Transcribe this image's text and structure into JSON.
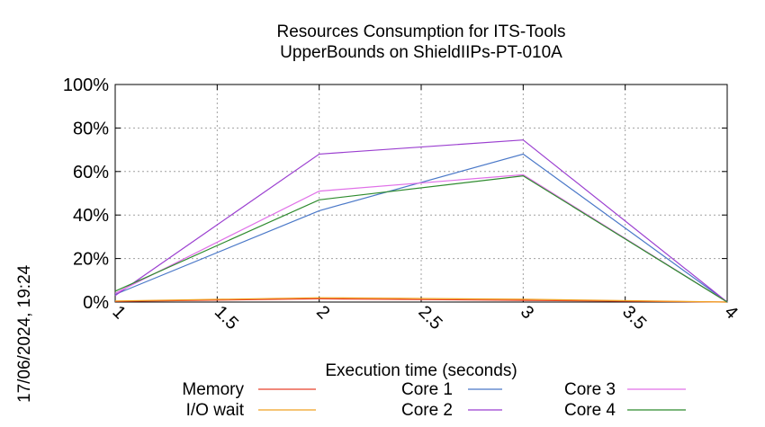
{
  "timestamp": "17/06/2024, 19:24",
  "chart_data": {
    "type": "line",
    "title": "Resources Consumption for ITS-Tools",
    "subtitle": "UpperBounds on ShieldIIPs-PT-010A",
    "xlabel": "Execution time (seconds)",
    "ylabel": "",
    "xlim": [
      1,
      4
    ],
    "ylim": [
      0,
      100
    ],
    "x_ticks": [
      "1",
      "1.5",
      "2",
      "2.5",
      "3",
      "3.5",
      "4"
    ],
    "y_ticks": [
      "0%",
      "20%",
      "40%",
      "60%",
      "80%",
      "100%"
    ],
    "grid": true,
    "legend_position": "bottom",
    "series": [
      {
        "name": "Memory",
        "color": "#e8402a",
        "x": [
          1,
          2,
          3,
          4
        ],
        "y": [
          0.3,
          1.5,
          0.8,
          0
        ]
      },
      {
        "name": "I/O wait",
        "color": "#f0a020",
        "x": [
          1,
          2,
          3,
          4
        ],
        "y": [
          0.5,
          2.0,
          1.3,
          0
        ]
      },
      {
        "name": "Core 1",
        "color": "#4a78c8",
        "x": [
          1,
          2,
          3,
          4
        ],
        "y": [
          3.5,
          42,
          68,
          0
        ]
      },
      {
        "name": "Core 2",
        "color": "#9b3fd0",
        "x": [
          1,
          2,
          3,
          4
        ],
        "y": [
          3,
          68,
          74.5,
          0
        ]
      },
      {
        "name": "Core 3",
        "color": "#e070e8",
        "x": [
          1,
          2,
          3,
          4
        ],
        "y": [
          4,
          51,
          58.5,
          0
        ]
      },
      {
        "name": "Core 4",
        "color": "#2e8b2e",
        "x": [
          1,
          2,
          3,
          4
        ],
        "y": [
          5,
          47,
          58,
          0
        ]
      }
    ]
  }
}
